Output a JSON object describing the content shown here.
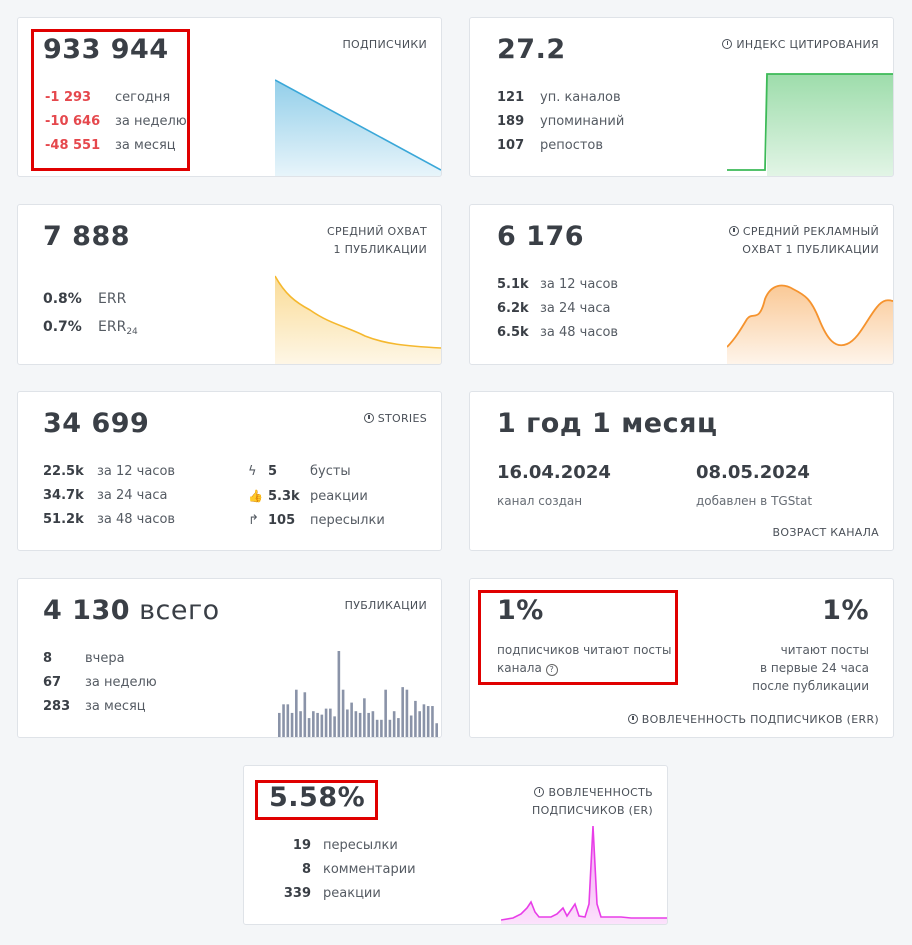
{
  "colors": {
    "negative": "#e5484d",
    "subs_chart": "#3aa7d8",
    "citation_chart": "#3cba57",
    "reach_chart": "#f5b82e",
    "ad_reach_chart": "#f5932e",
    "posts_chart": "#8a93a8",
    "er_chart": "#e83ee8",
    "highlight": "#e00000"
  },
  "subscribers": {
    "value": "933 944",
    "label": "ПОДПИСЧИКИ",
    "rows": [
      {
        "v": "-1 293",
        "l": "сегодня"
      },
      {
        "v": "-10 646",
        "l": "за неделю"
      },
      {
        "v": "-48 551",
        "l": "за месяц"
      }
    ]
  },
  "citation": {
    "value": "27.2",
    "label": "ИНДЕКС ЦИТИРОВАНИЯ",
    "rows": [
      {
        "v": "121",
        "l": "уп. каналов"
      },
      {
        "v": "189",
        "l": "упоминаний"
      },
      {
        "v": "107",
        "l": "репостов"
      }
    ]
  },
  "reach": {
    "value": "7 888",
    "label_line1": "СРЕДНИЙ ОХВАТ",
    "label_line2": "1 ПУБЛИКАЦИИ",
    "rows": [
      {
        "v": "0.8%",
        "l": "ERR"
      },
      {
        "v": "0.7%",
        "l": "ERR",
        "sub": "24"
      }
    ]
  },
  "ad_reach": {
    "value": "6 176",
    "label_line1": "СРЕДНИЙ РЕКЛАМНЫЙ",
    "label_line2": "ОХВАТ 1 ПУБЛИКАЦИИ",
    "rows": [
      {
        "v": "5.1k",
        "l": "за 12 часов"
      },
      {
        "v": "6.2k",
        "l": "за 24 часа"
      },
      {
        "v": "6.5k",
        "l": "за 48 часов"
      }
    ]
  },
  "stories": {
    "value": "34 699",
    "label": "STORIES",
    "rows_left": [
      {
        "v": "22.5k",
        "l": "за 12 часов"
      },
      {
        "v": "34.7k",
        "l": "за 24 часа"
      },
      {
        "v": "51.2k",
        "l": "за 48 часов"
      }
    ],
    "rows_right": [
      {
        "icon": "lightning-icon",
        "glyph": "ϟ",
        "v": "5",
        "l": "бусты"
      },
      {
        "icon": "thumbs-up-icon",
        "glyph": "👍",
        "v": "5.3k",
        "l": "реакции"
      },
      {
        "icon": "forward-arrow-icon",
        "glyph": "↱",
        "v": "105",
        "l": "пересылки"
      }
    ]
  },
  "age": {
    "value": "1 год 1 месяц",
    "created_date": "16.04.2024",
    "created_label": "канал создан",
    "added_date": "08.05.2024",
    "added_label": "добавлен в TGStat",
    "label": "ВОЗРАСТ КАНАЛА"
  },
  "publications": {
    "value": "4 130",
    "value_suffix": " всего",
    "label": "ПУБЛИКАЦИИ",
    "rows": [
      {
        "v": "8",
        "l": "вчера"
      },
      {
        "v": "67",
        "l": "за неделю"
      },
      {
        "v": "283",
        "l": "за месяц"
      }
    ]
  },
  "err": {
    "left_value": "1%",
    "left_text1": "подписчиков читают посты",
    "left_text2": "канала",
    "right_value": "1%",
    "right_text1": "читают посты",
    "right_text2": "в первые 24 часа",
    "right_text3": "после публикации",
    "label": "ВОВЛЕЧЕННОСТЬ ПОДПИСЧИКОВ (ERR)"
  },
  "er": {
    "value": "5.58%",
    "label_line1": "ВОВЛЕЧЕННОСТЬ",
    "label_line2": "ПОДПИСЧИКОВ (ER)",
    "rows": [
      {
        "v": "19",
        "l": "пересылки"
      },
      {
        "v": "8",
        "l": "комментарии"
      },
      {
        "v": "339",
        "l": "реакции"
      }
    ]
  },
  "bars": [
    0.28,
    0.38,
    0.38,
    0.28,
    0.55,
    0.3,
    0.52,
    0.22,
    0.3,
    0.28,
    0.26,
    0.33,
    0.33,
    0.24,
    1.0,
    0.55,
    0.32,
    0.4,
    0.3,
    0.28,
    0.45,
    0.28,
    0.3,
    0.2,
    0.2,
    0.55,
    0.2,
    0.3,
    0.22,
    0.58,
    0.55,
    0.25,
    0.42,
    0.3,
    0.38,
    0.36,
    0.36,
    0.16
  ]
}
